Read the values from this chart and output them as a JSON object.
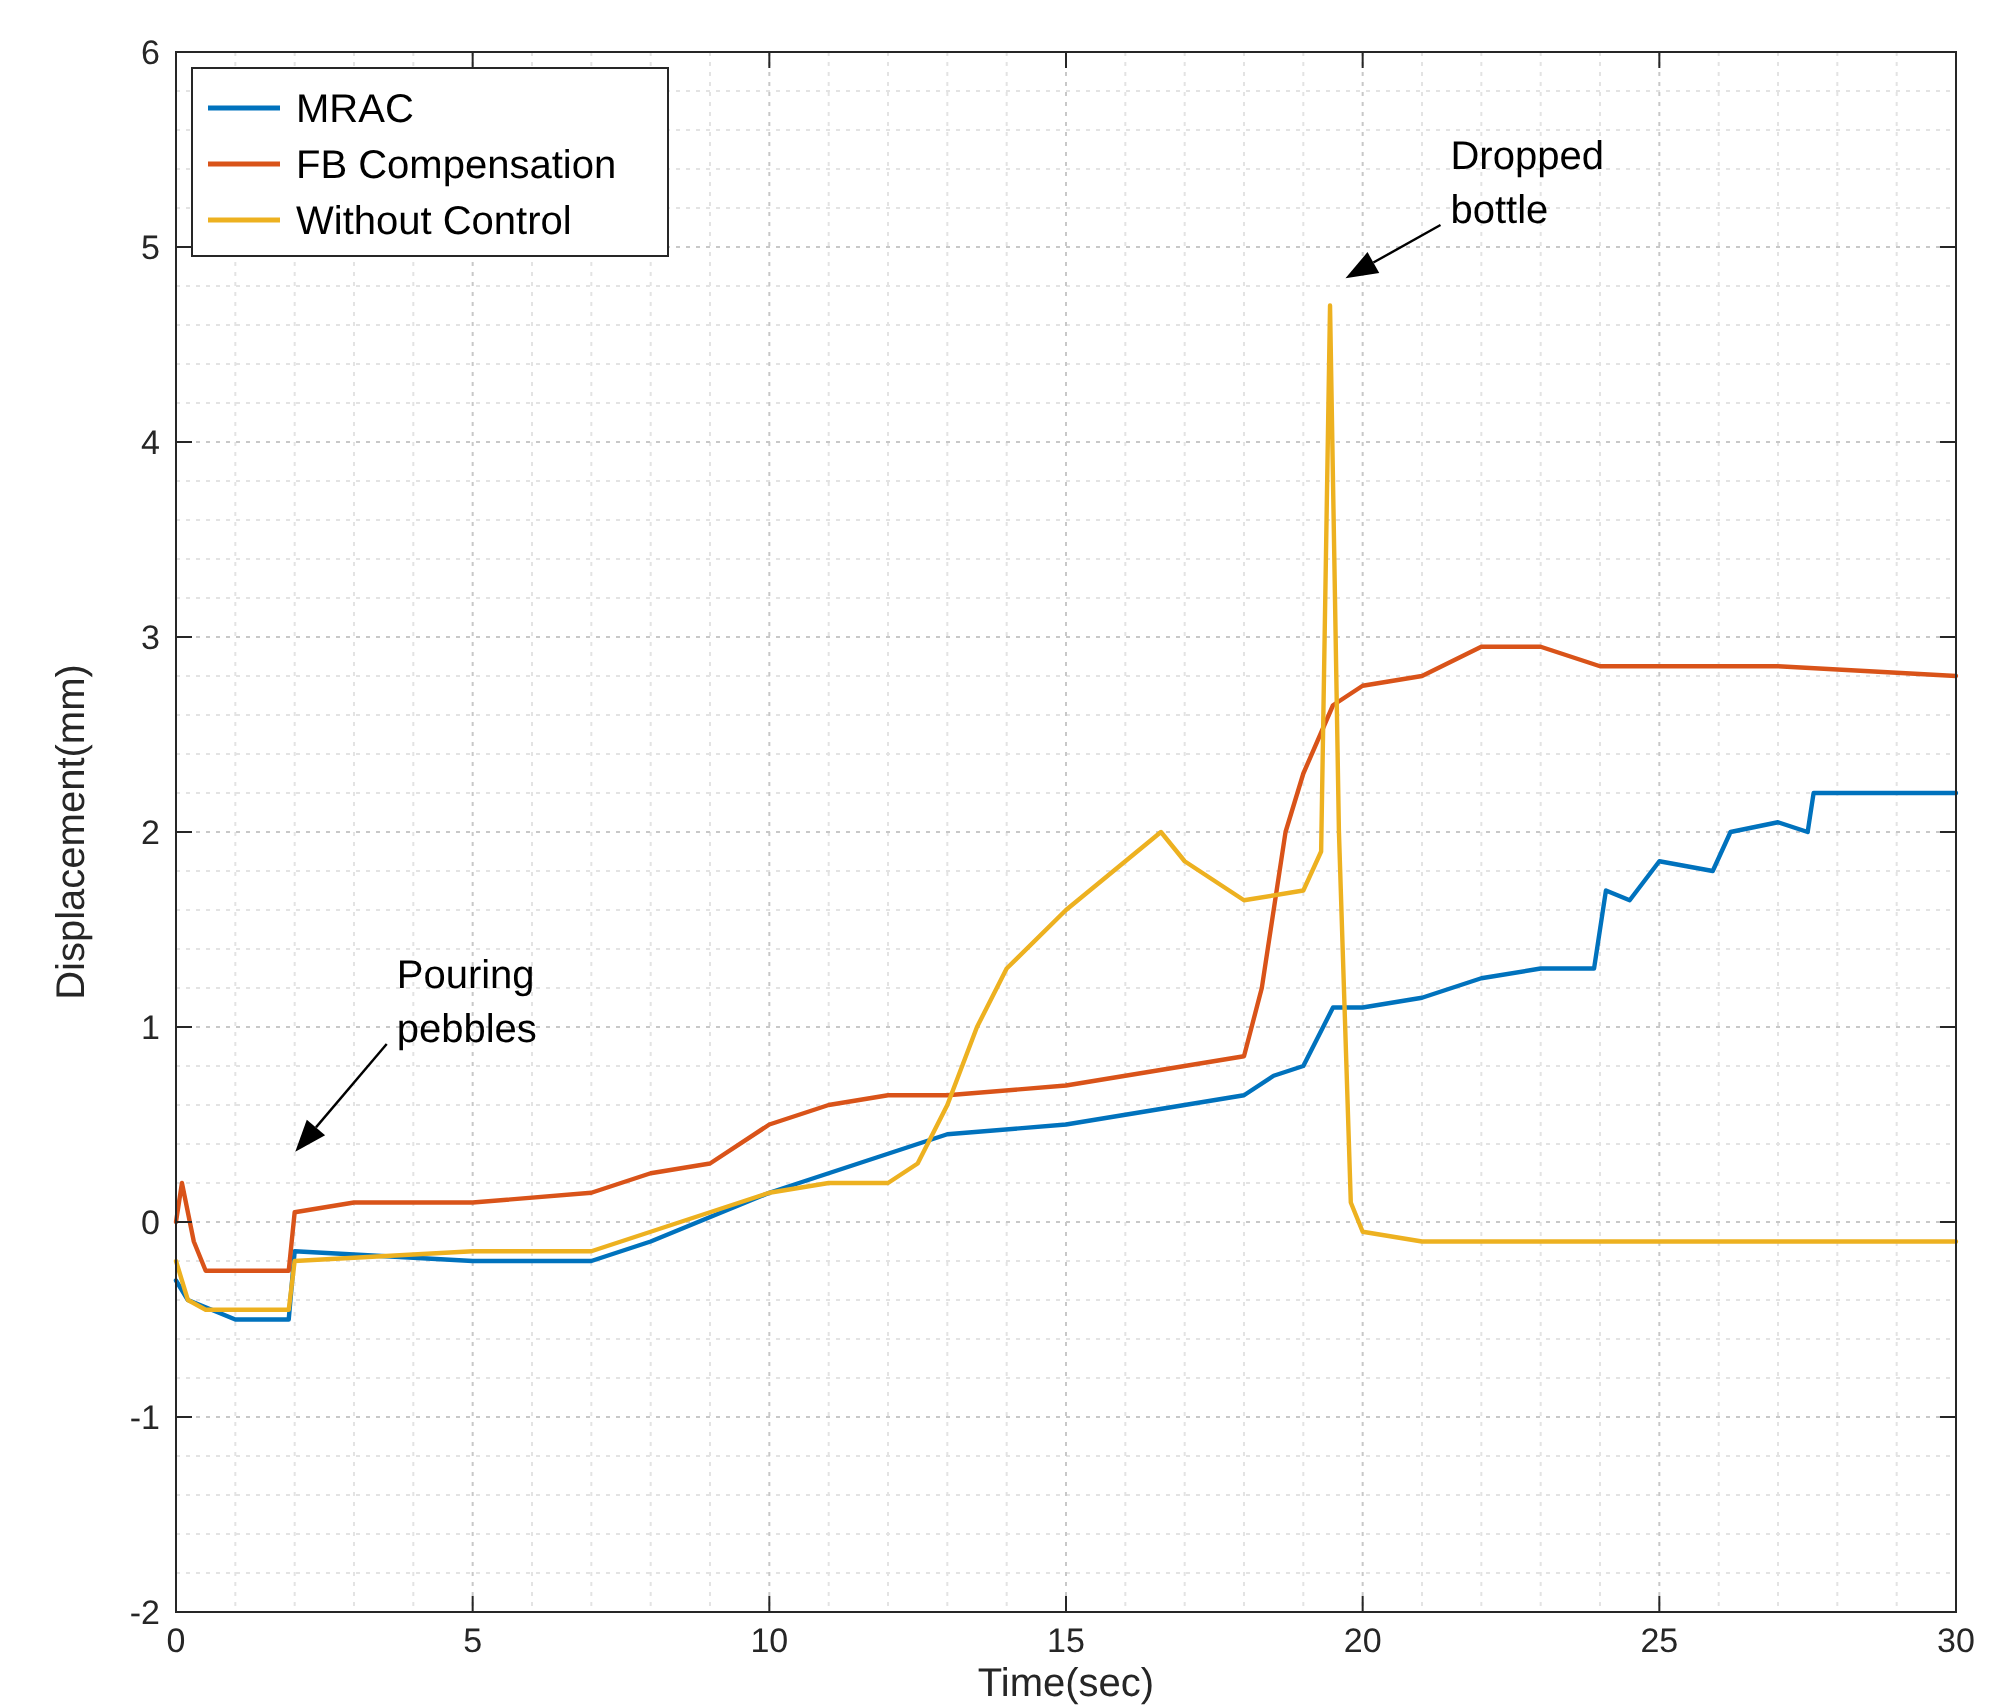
{
  "chart_data": {
    "type": "line",
    "xlabel": "Time(sec)",
    "ylabel": "Displacement(mm)",
    "xlim": [
      0,
      30
    ],
    "ylim": [
      -2,
      6
    ],
    "xticks": [
      0,
      5,
      10,
      15,
      20,
      25,
      30
    ],
    "yticks": [
      -2,
      -1,
      0,
      1,
      2,
      3,
      4,
      5,
      6
    ],
    "grid": true,
    "legend": "top left",
    "line_style": "solid",
    "marker": "none",
    "annotations": [
      "Pouring\npebbles",
      "Dropped\nbottle"
    ],
    "series": [
      {
        "name": "MRAC",
        "color": "#0072bd",
        "x": [
          0,
          0.2,
          1,
          1.9,
          2,
          5,
          7,
          8,
          10,
          12,
          13,
          15,
          17,
          18,
          18.5,
          19,
          19.5,
          20,
          21,
          22,
          23,
          23.9,
          24.1,
          24.5,
          25,
          25.9,
          26.2,
          27,
          27.5,
          27.6,
          28,
          30
        ],
        "values": [
          -0.3,
          -0.4,
          -0.5,
          -0.5,
          -0.15,
          -0.2,
          -0.2,
          -0.1,
          0.15,
          0.35,
          0.45,
          0.5,
          0.6,
          0.65,
          0.75,
          0.8,
          1.1,
          1.1,
          1.15,
          1.25,
          1.3,
          1.3,
          1.7,
          1.65,
          1.85,
          1.8,
          2.0,
          2.05,
          2.0,
          2.2,
          2.2,
          2.2
        ]
      },
      {
        "name": "FB Compensation",
        "color": "#d95319",
        "x": [
          0,
          0.1,
          0.3,
          0.5,
          1,
          1.9,
          2,
          3,
          5,
          7,
          8,
          9,
          10,
          11,
          12,
          13,
          15,
          17,
          18,
          18.3,
          18.7,
          19,
          19.5,
          20,
          21,
          22,
          23,
          24,
          25,
          27,
          30
        ],
        "values": [
          0,
          0.2,
          -0.1,
          -0.25,
          -0.25,
          -0.25,
          0.05,
          0.1,
          0.1,
          0.15,
          0.25,
          0.3,
          0.5,
          0.6,
          0.65,
          0.65,
          0.7,
          0.8,
          0.85,
          1.2,
          2.0,
          2.3,
          2.65,
          2.75,
          2.8,
          2.95,
          2.95,
          2.85,
          2.85,
          2.85,
          2.8
        ]
      },
      {
        "name": "Without Control",
        "color": "#edb120",
        "x": [
          0,
          0.2,
          0.5,
          1,
          1.9,
          2,
          5,
          7,
          8,
          9,
          10,
          11,
          12,
          12.5,
          13,
          13.5,
          14,
          15,
          16,
          16.6,
          17,
          18,
          19,
          19.3,
          19.45,
          19.6,
          19.8,
          20,
          21,
          25,
          30
        ],
        "values": [
          -0.2,
          -0.4,
          -0.45,
          -0.45,
          -0.45,
          -0.2,
          -0.15,
          -0.15,
          -0.05,
          0.05,
          0.15,
          0.2,
          0.2,
          0.3,
          0.6,
          1.0,
          1.3,
          1.6,
          1.85,
          2.0,
          1.85,
          1.65,
          1.7,
          1.9,
          4.7,
          2.0,
          0.1,
          -0.05,
          -0.1,
          -0.1,
          -0.1
        ]
      }
    ]
  }
}
